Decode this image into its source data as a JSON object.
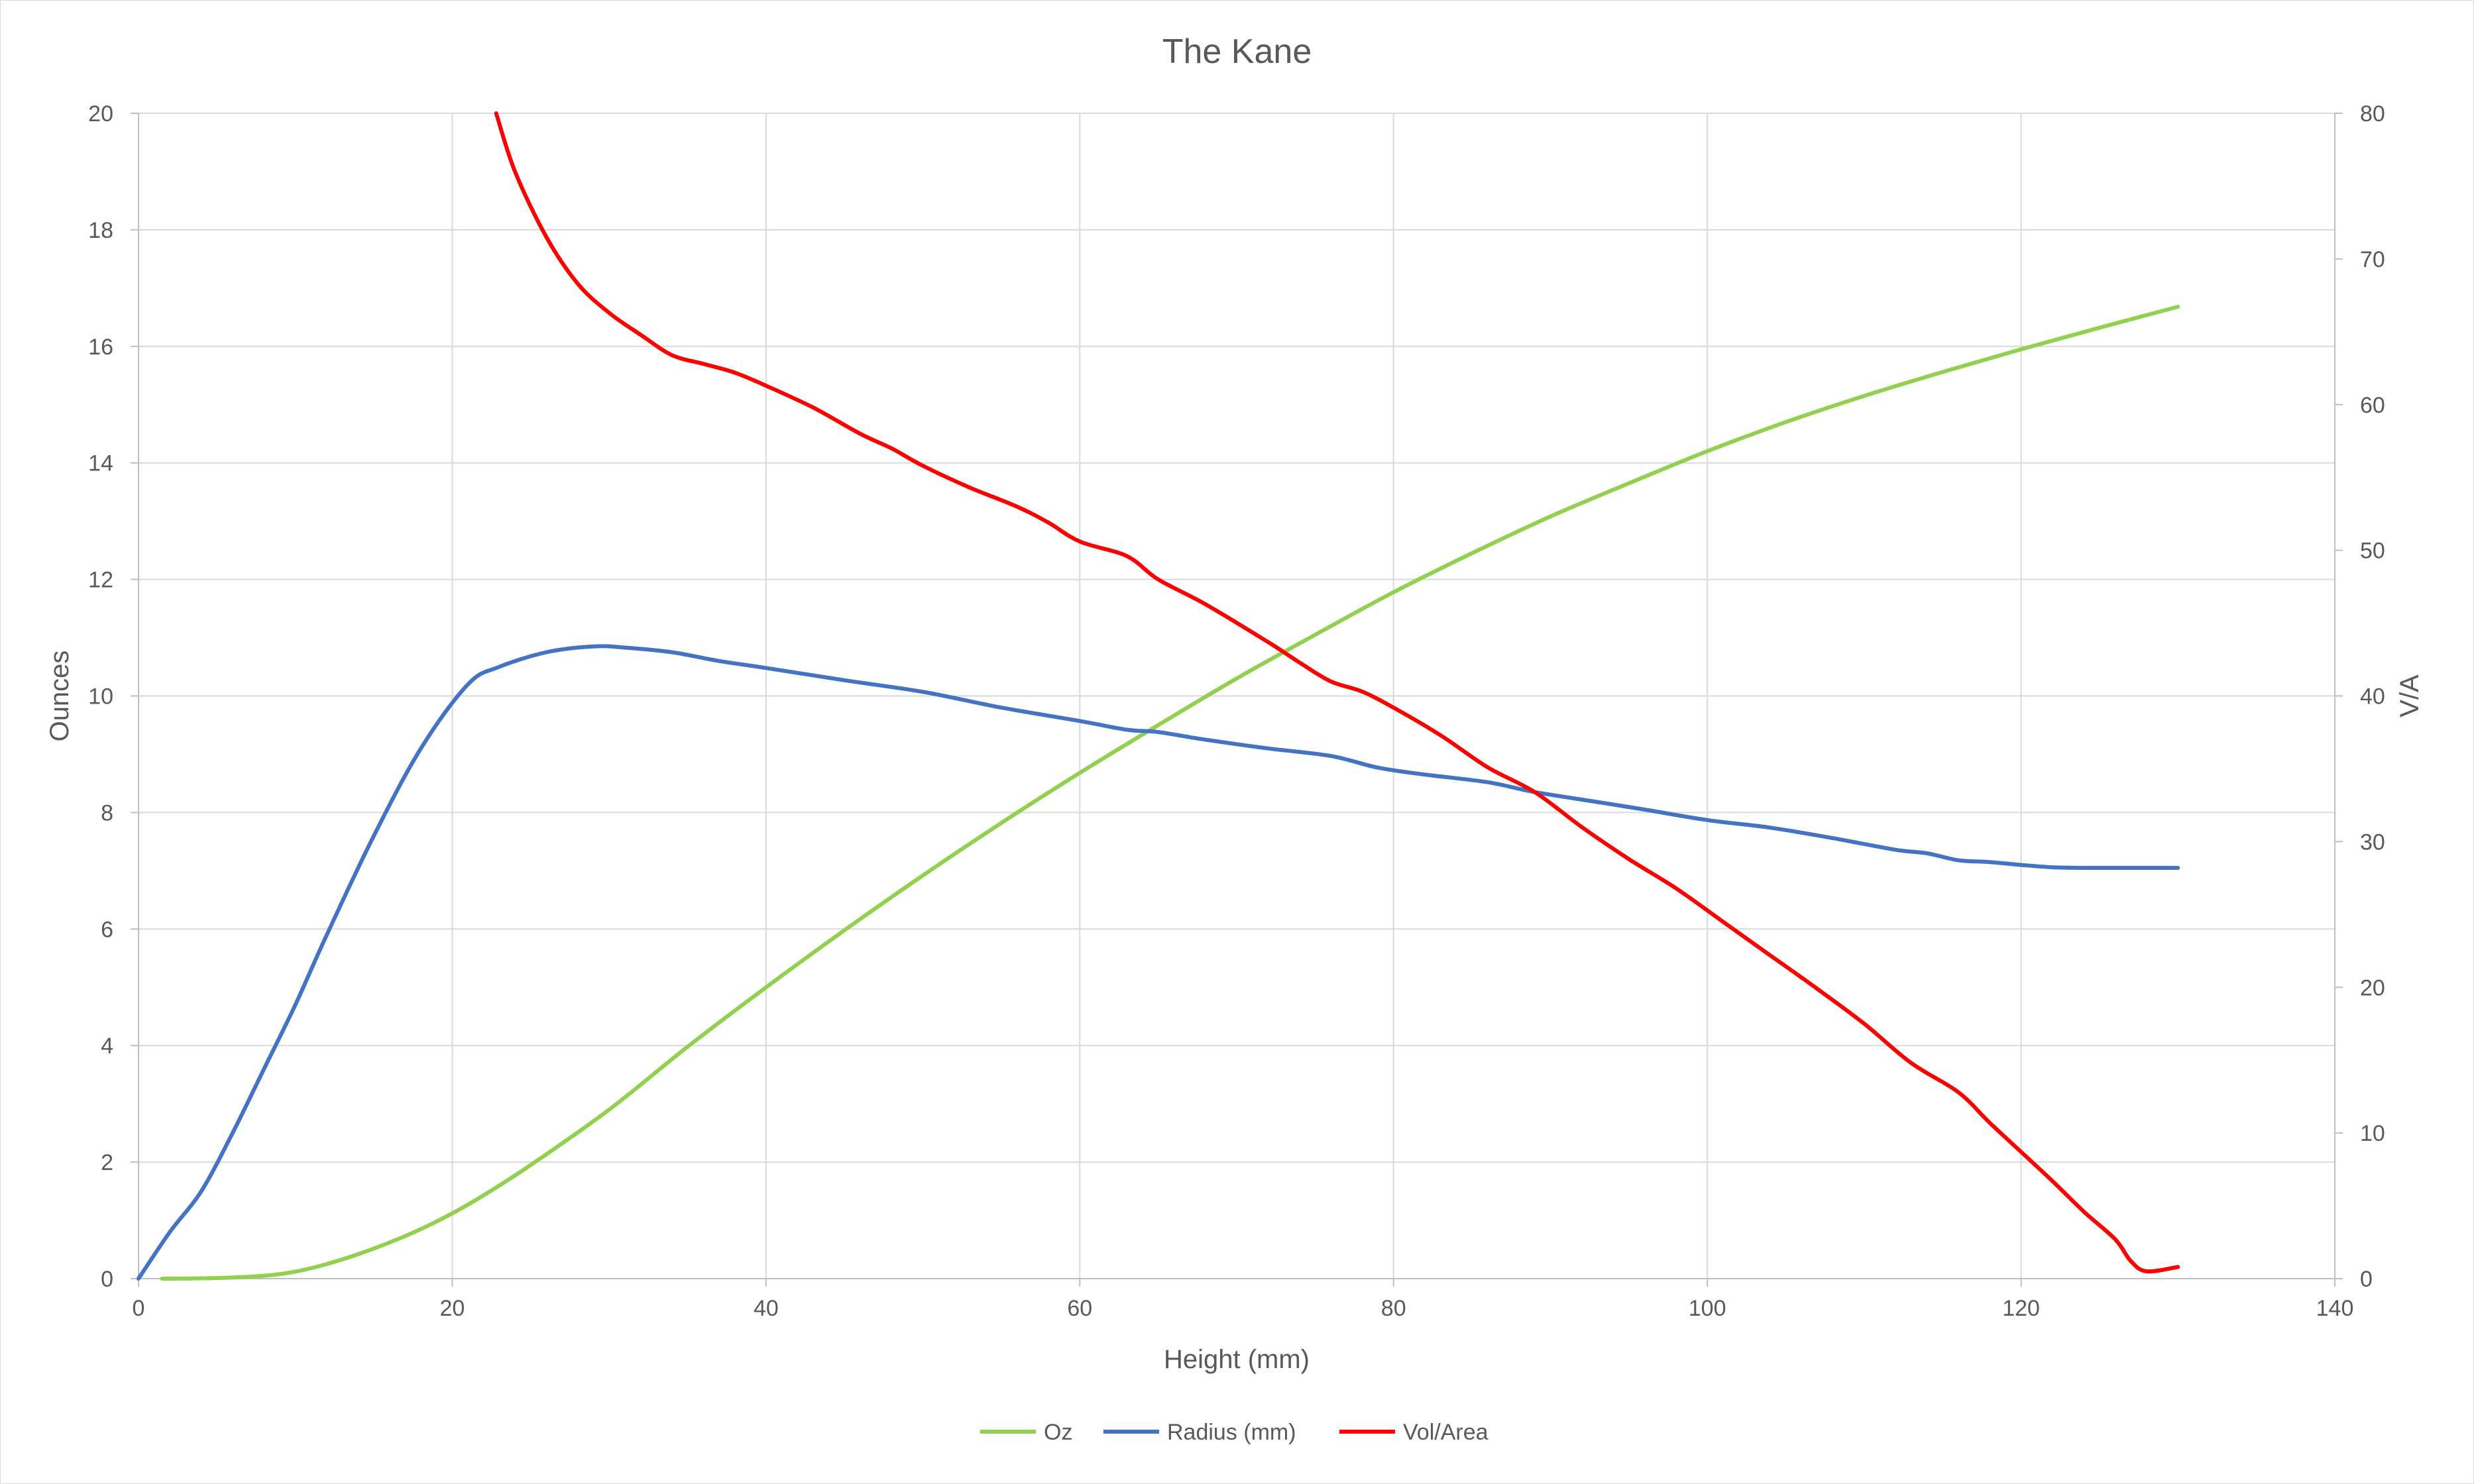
{
  "chart_data": {
    "type": "line",
    "title": "The Kane",
    "xlabel": "Height (mm)",
    "ylabel": "Ounces",
    "y2label": "V/A",
    "xlim": [
      0,
      140
    ],
    "ylim": [
      0,
      20
    ],
    "y2lim": [
      0,
      80
    ],
    "x_ticks": [
      0,
      20,
      40,
      60,
      80,
      100,
      120,
      140
    ],
    "y_ticks": [
      0,
      2,
      4,
      6,
      8,
      10,
      12,
      14,
      16,
      18,
      20
    ],
    "y2_ticks": [
      0,
      10,
      20,
      30,
      40,
      50,
      60,
      70,
      80
    ],
    "grid": true,
    "legend_position": "bottom",
    "series": [
      {
        "name": "Oz",
        "axis": "left",
        "color": "#92d050",
        "x": [
          1.5,
          5,
          8,
          10,
          12,
          14,
          16,
          18,
          20,
          22,
          25,
          30,
          35,
          40,
          45,
          50,
          55,
          60,
          65,
          70,
          75,
          80,
          85,
          90,
          95,
          100,
          105,
          110,
          115,
          120,
          125,
          130
        ],
        "y": [
          0,
          0.01,
          0.05,
          0.12,
          0.25,
          0.42,
          0.62,
          0.85,
          1.12,
          1.43,
          1.95,
          2.9,
          3.98,
          5.0,
          5.98,
          6.92,
          7.82,
          8.68,
          9.5,
          10.3,
          11.05,
          11.78,
          12.45,
          13.08,
          13.65,
          14.2,
          14.7,
          15.15,
          15.56,
          15.95,
          16.32,
          16.68
        ]
      },
      {
        "name": "Radius (mm)",
        "axis": "left",
        "color": "#4472c4",
        "x": [
          0,
          2,
          4,
          6,
          8,
          10,
          12,
          15,
          18,
          21,
          23,
          26,
          29,
          31,
          34,
          37,
          40,
          45,
          50,
          55,
          60,
          63,
          65,
          68,
          72,
          76,
          79,
          82,
          86,
          89,
          93,
          96,
          100,
          104,
          108,
          112,
          114,
          116,
          118,
          120,
          122,
          124,
          126,
          128,
          130
        ],
        "y": [
          0,
          0.8,
          1.5,
          2.5,
          3.6,
          4.7,
          5.9,
          7.6,
          9.1,
          10.2,
          10.5,
          10.75,
          10.85,
          10.83,
          10.75,
          10.6,
          10.48,
          10.27,
          10.07,
          9.8,
          9.57,
          9.42,
          9.38,
          9.25,
          9.1,
          8.97,
          8.77,
          8.65,
          8.52,
          8.35,
          8.18,
          8.05,
          7.87,
          7.74,
          7.56,
          7.36,
          7.3,
          7.18,
          7.15,
          7.1,
          7.06,
          7.05,
          7.05,
          7.05,
          7.05
        ]
      },
      {
        "name": "Vol/Area",
        "axis": "right",
        "color": "#ff0000",
        "x": [
          22.8,
          24,
          26,
          28,
          30,
          32,
          34,
          36,
          38,
          40,
          43,
          46,
          48,
          50,
          53,
          56,
          58,
          60,
          63,
          65,
          68,
          72,
          74,
          76,
          78,
          80,
          83,
          86,
          89,
          92,
          95,
          98,
          101,
          104,
          107,
          110,
          113,
          116,
          118,
          120,
          122,
          124,
          126,
          127,
          128,
          130
        ],
        "y": [
          80,
          76,
          71.5,
          68.3,
          66.3,
          64.8,
          63.4,
          62.8,
          62.2,
          61.3,
          59.8,
          58.0,
          57.0,
          55.8,
          54.3,
          53.0,
          51.9,
          50.6,
          49.6,
          48.0,
          46.3,
          43.7,
          42.3,
          41.0,
          40.3,
          39.2,
          37.3,
          35.1,
          33.4,
          31.0,
          28.8,
          26.8,
          24.5,
          22.2,
          19.9,
          17.5,
          14.8,
          12.8,
          10.7,
          8.7,
          6.7,
          4.6,
          2.7,
          1.2,
          0.5,
          0.8
        ]
      }
    ]
  }
}
